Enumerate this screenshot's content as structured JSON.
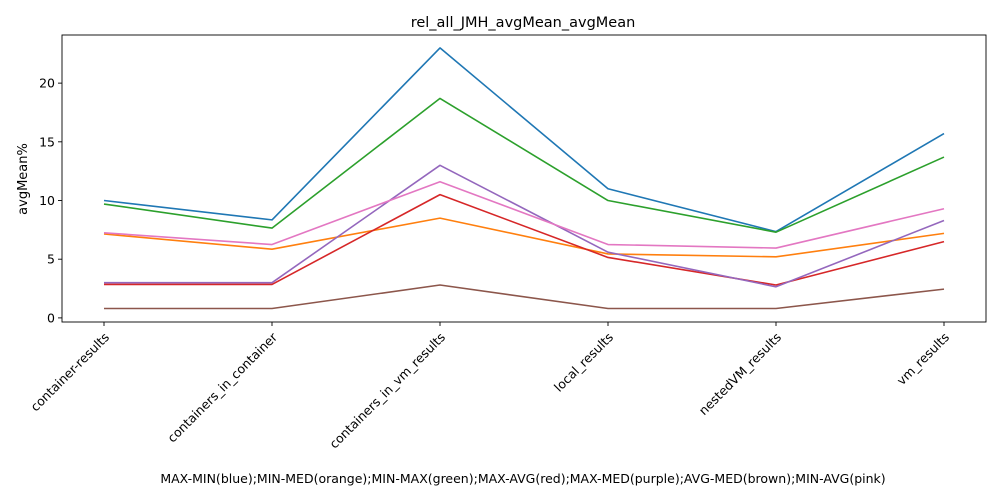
{
  "chart_data": {
    "type": "line",
    "title": "rel_all_JMH_avgMean_avgMean",
    "xlabel": "MAX-MIN(blue);MIN-MED(orange);MIN-MAX(green);MAX-AVG(red);MAX-MED(purple);AVG-MED(brown);MIN-AVG(pink)",
    "ylabel": "avgMean%",
    "categories": [
      "container-results",
      "containers_in_container",
      "containers_in_vm_results",
      "local_results",
      "nestedVM_results",
      "vm_results"
    ],
    "ylim": [
      -0.35,
      24.1
    ],
    "yticks": [
      0,
      5,
      10,
      15,
      20
    ],
    "grid": false,
    "series": [
      {
        "color": "#1f77b4",
        "values": [
          10.0,
          8.35,
          23.0,
          11.0,
          7.35,
          15.7
        ]
      },
      {
        "color": "#ff7f0e",
        "values": [
          7.15,
          5.85,
          8.5,
          5.45,
          5.2,
          7.2
        ]
      },
      {
        "color": "#2ca02c",
        "values": [
          9.7,
          7.65,
          18.7,
          10.0,
          7.3,
          13.7
        ]
      },
      {
        "color": "#d62728",
        "values": [
          2.85,
          2.85,
          10.5,
          5.15,
          2.8,
          6.5
        ]
      },
      {
        "color": "#9467bd",
        "values": [
          3.0,
          3.0,
          13.0,
          5.6,
          2.65,
          8.3
        ]
      },
      {
        "color": "#8c564b",
        "values": [
          0.8,
          0.8,
          2.8,
          0.8,
          0.8,
          2.45
        ]
      },
      {
        "color": "#e377c2",
        "values": [
          7.25,
          6.25,
          11.6,
          6.25,
          5.95,
          9.3
        ]
      }
    ]
  }
}
